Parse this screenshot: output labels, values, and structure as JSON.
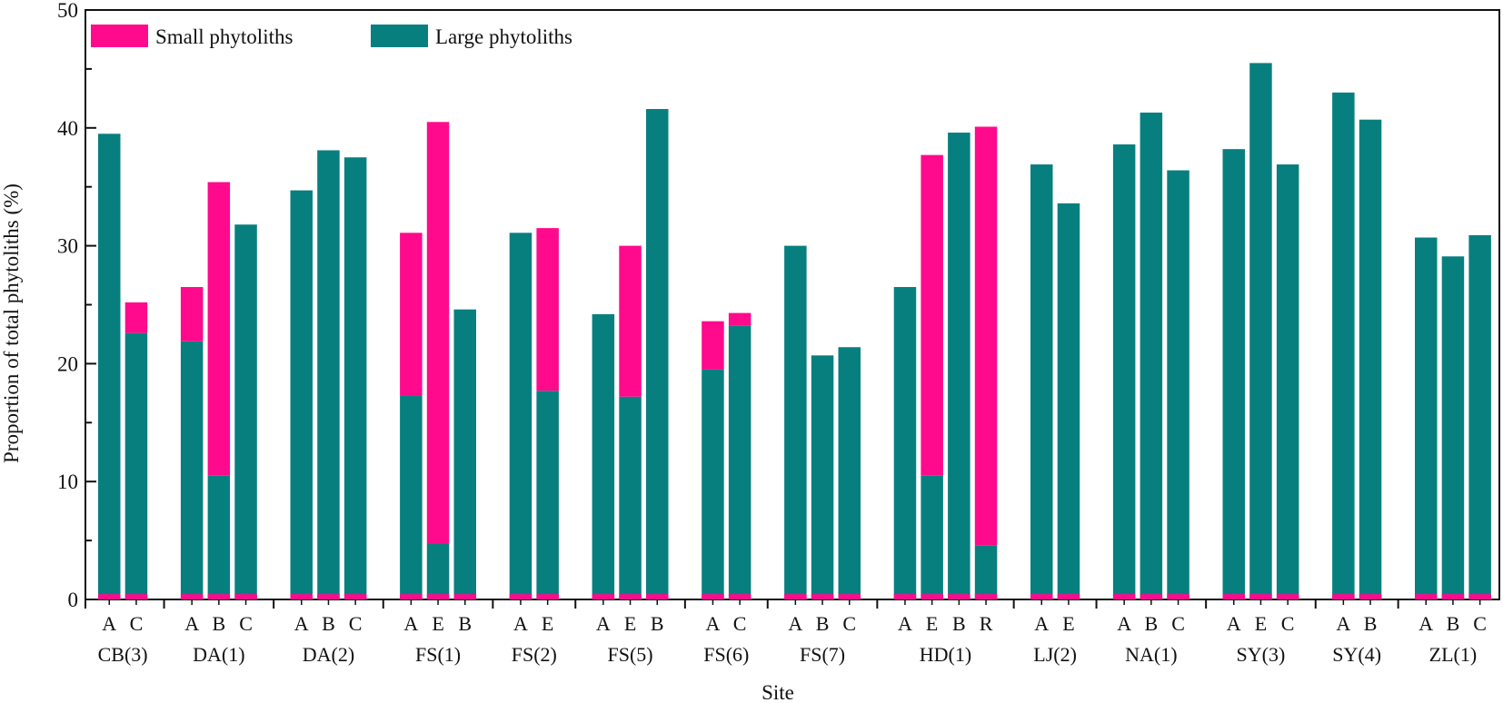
{
  "chart_data": {
    "type": "bar",
    "stacked": true,
    "ylabel": "Proportion of total phytoliths (%)",
    "xlabel": "Site",
    "ylim": [
      0,
      50
    ],
    "yticks": [
      0,
      10,
      20,
      30,
      40,
      50
    ],
    "colors": {
      "small": "#ff0a8c",
      "large": "#087f7f"
    },
    "legend": [
      {
        "name": "Small phytoliths",
        "key": "small"
      },
      {
        "name": "Large phytoliths",
        "key": "large"
      }
    ],
    "groups": [
      {
        "site": "CB(3)",
        "bars": [
          {
            "label": "A",
            "large": 39.5,
            "small": 0
          },
          {
            "label": "C",
            "large": 22.6,
            "small": 2.6
          }
        ]
      },
      {
        "site": "DA(1)",
        "bars": [
          {
            "label": "A",
            "large": 21.9,
            "small": 4.6
          },
          {
            "label": "B",
            "large": 10.5,
            "small": 24.9
          },
          {
            "label": "C",
            "large": 31.8,
            "small": 0
          }
        ]
      },
      {
        "site": "DA(2)",
        "bars": [
          {
            "label": "A",
            "large": 34.7,
            "small": 0
          },
          {
            "label": "B",
            "large": 38.1,
            "small": 0
          },
          {
            "label": "C",
            "large": 37.5,
            "small": 0
          }
        ]
      },
      {
        "site": "FS(1)",
        "bars": [
          {
            "label": "A",
            "large": 17.3,
            "small": 13.8
          },
          {
            "label": "E",
            "large": 4.7,
            "small": 35.8
          },
          {
            "label": "B",
            "large": 24.6,
            "small": 0
          }
        ]
      },
      {
        "site": "FS(2)",
        "bars": [
          {
            "label": "A",
            "large": 31.1,
            "small": 0
          },
          {
            "label": "E",
            "large": 17.7,
            "small": 13.8
          }
        ]
      },
      {
        "site": "FS(5)",
        "bars": [
          {
            "label": "A",
            "large": 24.2,
            "small": 0
          },
          {
            "label": "E",
            "large": 17.2,
            "small": 12.8
          },
          {
            "label": "B",
            "large": 41.6,
            "small": 0
          }
        ]
      },
      {
        "site": "FS(6)",
        "bars": [
          {
            "label": "A",
            "large": 19.5,
            "small": 4.1
          },
          {
            "label": "C",
            "large": 23.2,
            "small": 1.1
          }
        ]
      },
      {
        "site": "FS(7)",
        "bars": [
          {
            "label": "A",
            "large": 30.0,
            "small": 0
          },
          {
            "label": "B",
            "large": 20.7,
            "small": 0
          },
          {
            "label": "C",
            "large": 21.4,
            "small": 0
          }
        ]
      },
      {
        "site": "HD(1)",
        "bars": [
          {
            "label": "A",
            "large": 26.5,
            "small": 0
          },
          {
            "label": "E",
            "large": 10.5,
            "small": 27.2
          },
          {
            "label": "B",
            "large": 39.6,
            "small": 0
          },
          {
            "label": "R",
            "large": 4.6,
            "small": 35.5
          }
        ]
      },
      {
        "site": "LJ(2)",
        "bars": [
          {
            "label": "A",
            "large": 36.9,
            "small": 0
          },
          {
            "label": "E",
            "large": 33.6,
            "small": 0
          }
        ]
      },
      {
        "site": "NA(1)",
        "bars": [
          {
            "label": "A",
            "large": 38.6,
            "small": 0
          },
          {
            "label": "B",
            "large": 41.3,
            "small": 0
          },
          {
            "label": "C",
            "large": 36.4,
            "small": 0
          }
        ]
      },
      {
        "site": "SY(3)",
        "bars": [
          {
            "label": "A",
            "large": 38.2,
            "small": 0
          },
          {
            "label": "E",
            "large": 45.5,
            "small": 0
          },
          {
            "label": "C",
            "large": 36.9,
            "small": 0
          }
        ]
      },
      {
        "site": "SY(4)",
        "bars": [
          {
            "label": "A",
            "large": 43.0,
            "small": 0
          },
          {
            "label": "B",
            "large": 40.7,
            "small": 0
          }
        ]
      },
      {
        "site": "ZL(1)",
        "bars": [
          {
            "label": "A",
            "large": 30.7,
            "small": 0
          },
          {
            "label": "B",
            "large": 29.1,
            "small": 0
          },
          {
            "label": "C",
            "large": 30.9,
            "small": 0
          }
        ]
      }
    ]
  }
}
